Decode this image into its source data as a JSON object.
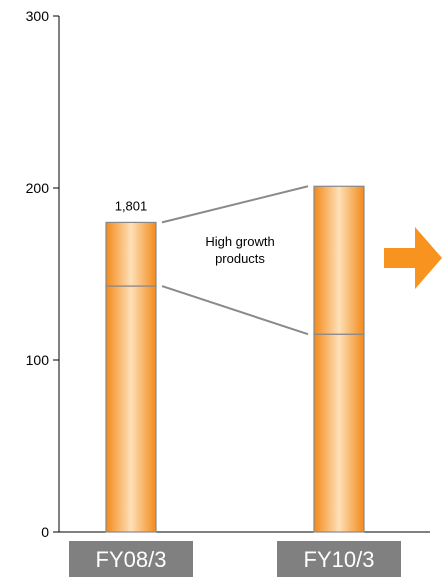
{
  "chart_data": {
    "type": "bar",
    "stacked": true,
    "categories": [
      "FY08/3",
      "FY10/3"
    ],
    "series": [
      {
        "values": [
          143,
          115
        ]
      },
      {
        "values": [
          37,
          86
        ]
      }
    ],
    "data_labels": [
      {
        "category": "FY08/3",
        "text": "1,801"
      }
    ],
    "annotation": "High growth\nproducts",
    "yticks": [
      0,
      100,
      200,
      300
    ],
    "ylim": [
      0,
      300
    ],
    "title": "",
    "xlabel": "",
    "ylabel": "",
    "grid": false,
    "colors": {
      "bar_edge": "#f38a1a",
      "bar_center": "#fde0b8",
      "bar_outline": "#888888",
      "connector": "#8a8a8a",
      "arrow": "#f7931e",
      "category_box": "#808080"
    }
  }
}
